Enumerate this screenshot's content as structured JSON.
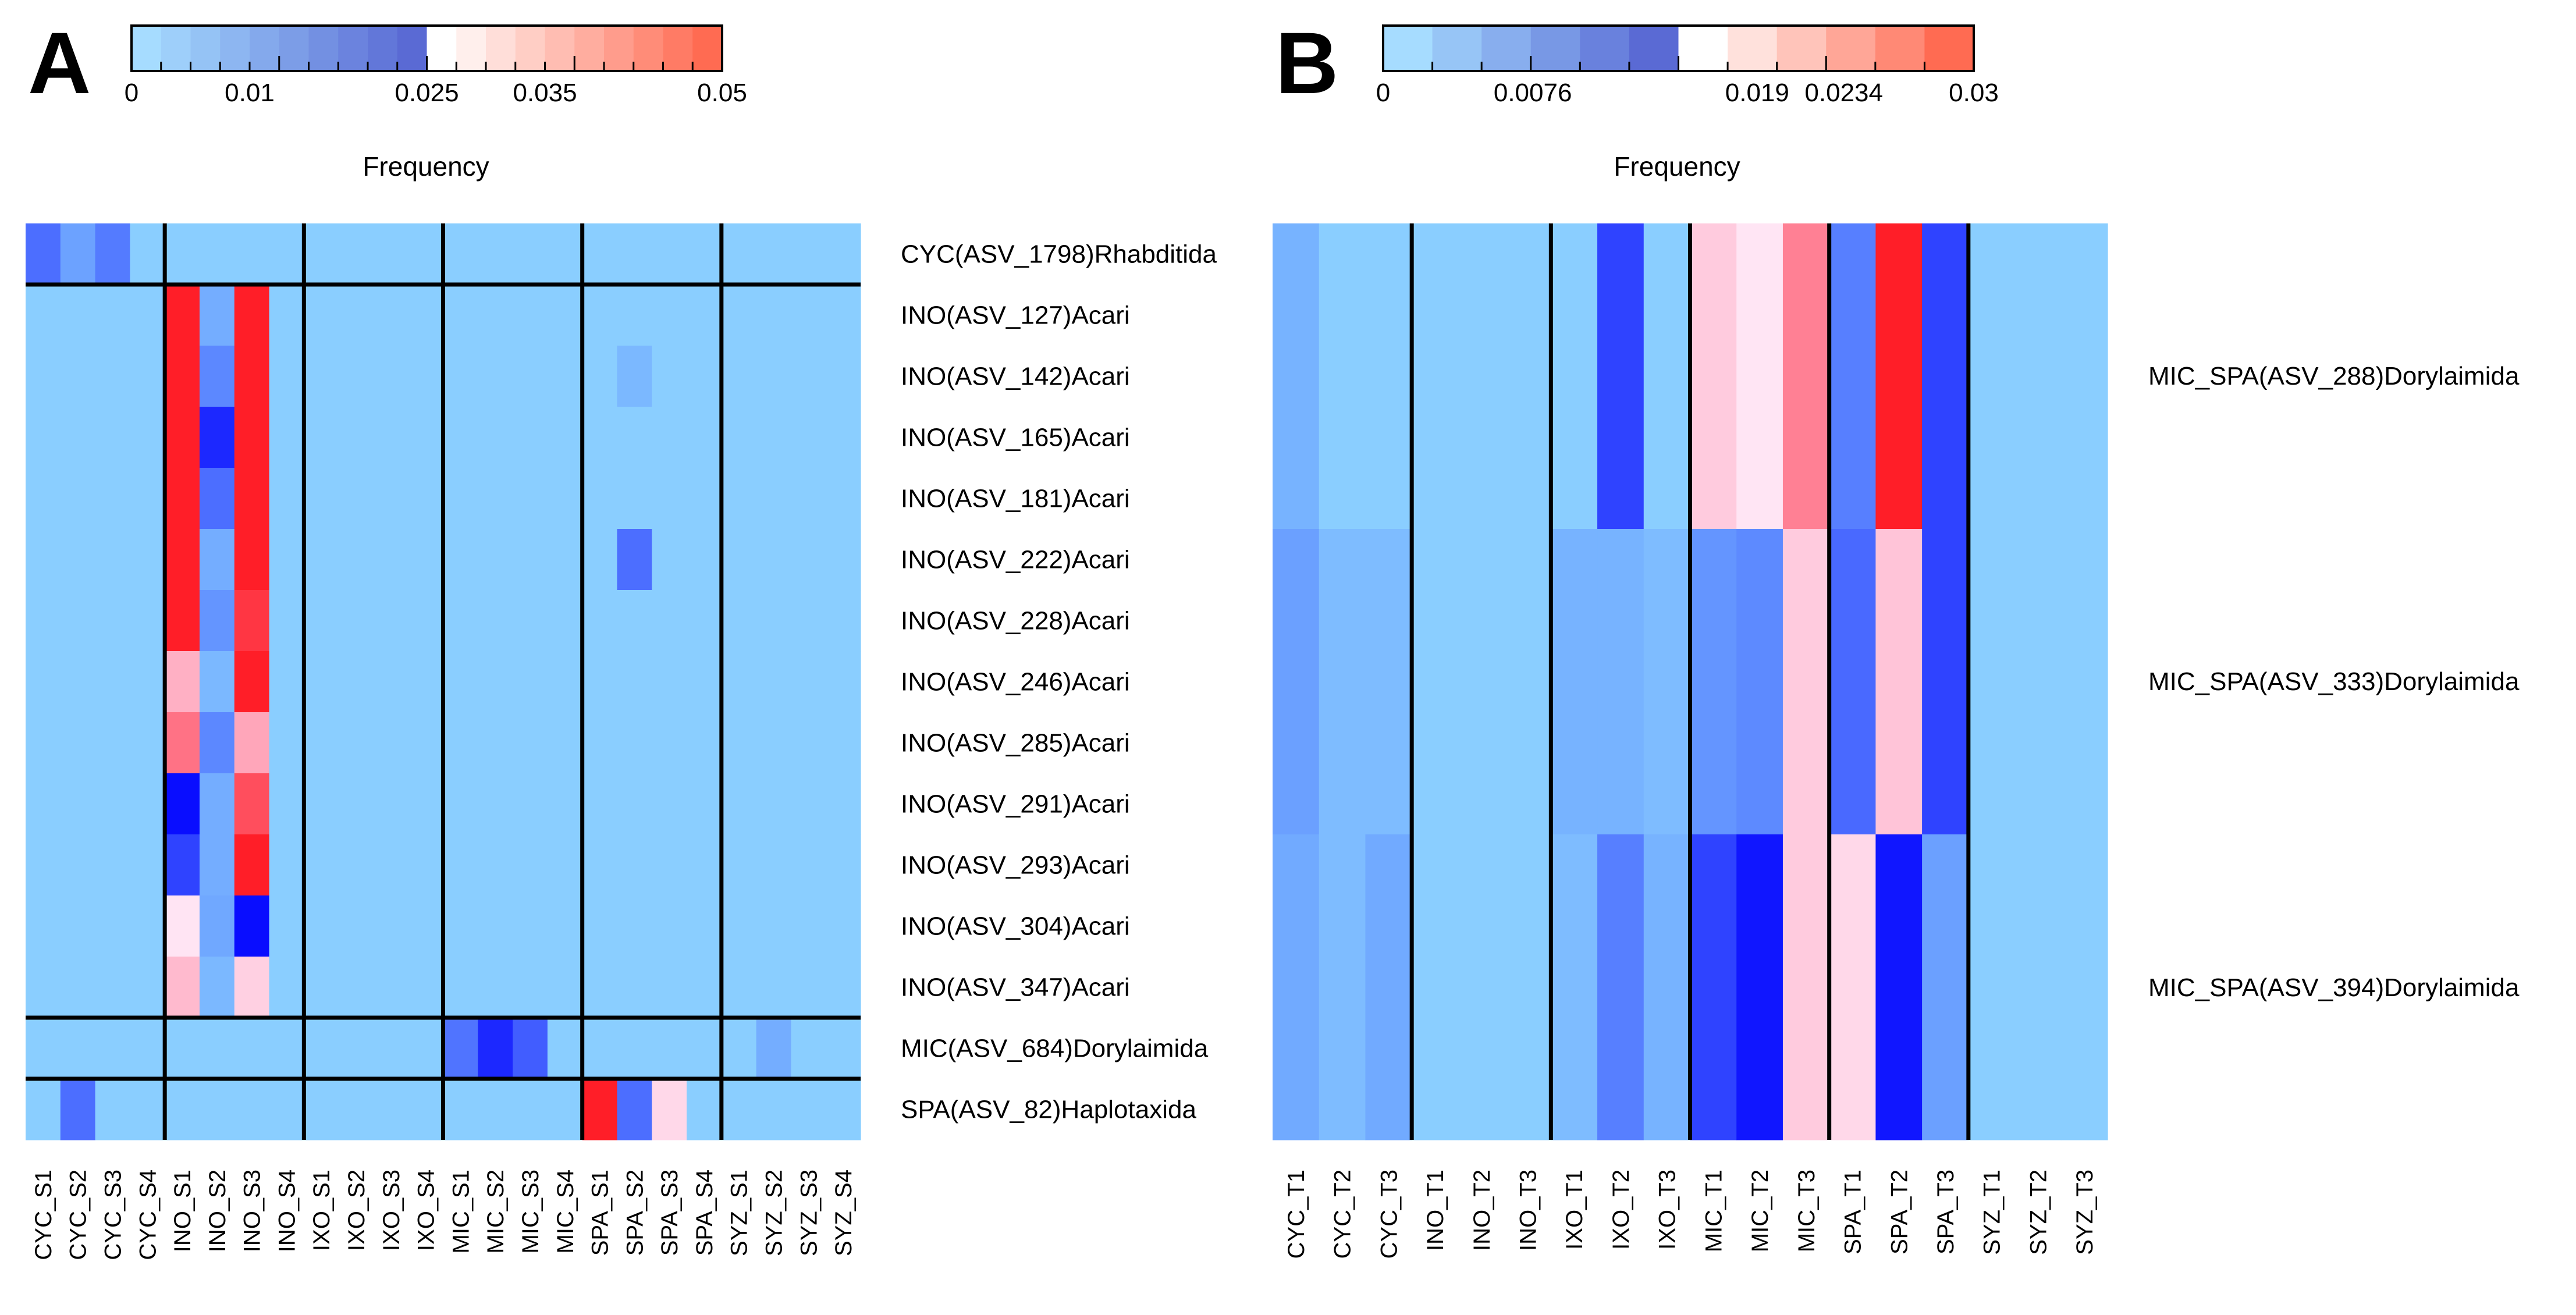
{
  "chart_data": [
    {
      "type": "heatmap",
      "panel_label": "A",
      "colorbar": {
        "title": "Frequency",
        "ticks": [
          "0",
          "0.01",
          "0.025",
          "0.035",
          "0.05"
        ],
        "range": [
          0,
          0.05
        ],
        "steps": 20,
        "low_color": "#a6dcff",
        "mid_low_color": "#5a6ad4",
        "mid_color": "#ffffff",
        "high_color": "#ff6b52"
      },
      "columns": [
        "CYC_S1",
        "CYC_S2",
        "CYC_S3",
        "CYC_S4",
        "INO_S1",
        "INO_S2",
        "INO_S3",
        "INO_S4",
        "IXO_S1",
        "IXO_S2",
        "IXO_S3",
        "IXO_S4",
        "MIC_S1",
        "MIC_S2",
        "MIC_S3",
        "MIC_S4",
        "SPA_S1",
        "SPA_S2",
        "SPA_S3",
        "SPA_S4",
        "SYZ_S1",
        "SYZ_S2",
        "SYZ_S3",
        "SYZ_S4"
      ],
      "rows": [
        "CYC(ASV_1798)Rhabditida",
        "INO(ASV_127)Acari",
        "INO(ASV_142)Acari",
        "INO(ASV_165)Acari",
        "INO(ASV_181)Acari",
        "INO(ASV_222)Acari",
        "INO(ASV_228)Acari",
        "INO(ASV_246)Acari",
        "INO(ASV_285)Acari",
        "INO(ASV_291)Acari",
        "INO(ASV_293)Acari",
        "INO(ASV_304)Acari",
        "INO(ASV_347)Acari",
        "MIC(ASV_684)Dorylaimida",
        "SPA(ASV_82)Haplotaxida"
      ],
      "col_separators_after": [
        3,
        7,
        11,
        15,
        19
      ],
      "row_separators_after": [
        0,
        12,
        13
      ],
      "values": [
        [
          0.016,
          0.008,
          0.014,
          0,
          0,
          0,
          0,
          0,
          0,
          0,
          0,
          0,
          0,
          0,
          0,
          0,
          0,
          0,
          0,
          0,
          0,
          0,
          0,
          0
        ],
        [
          0,
          0,
          0,
          0,
          0.05,
          0.006,
          0.05,
          0,
          0,
          0,
          0,
          0,
          0,
          0,
          0,
          0,
          0,
          0,
          0,
          0,
          0,
          0,
          0,
          0
        ],
        [
          0,
          0,
          0,
          0,
          0.05,
          0.012,
          0.05,
          0,
          0,
          0,
          0,
          0,
          0,
          0,
          0,
          0,
          0,
          0.004,
          0,
          0,
          0,
          0,
          0,
          0
        ],
        [
          0,
          0,
          0,
          0,
          0.05,
          0.022,
          0.05,
          0,
          0,
          0,
          0,
          0,
          0,
          0,
          0,
          0,
          0,
          0,
          0,
          0,
          0,
          0,
          0,
          0
        ],
        [
          0,
          0,
          0,
          0,
          0.05,
          0.016,
          0.05,
          0,
          0,
          0,
          0,
          0,
          0,
          0,
          0,
          0,
          0,
          0,
          0,
          0,
          0,
          0,
          0,
          0
        ],
        [
          0,
          0,
          0,
          0,
          0.05,
          0.006,
          0.05,
          0,
          0,
          0,
          0,
          0,
          0,
          0,
          0,
          0,
          0,
          0.016,
          0,
          0,
          0,
          0,
          0,
          0
        ],
        [
          0,
          0,
          0,
          0,
          0.05,
          0.01,
          0.048,
          0,
          0,
          0,
          0,
          0,
          0,
          0,
          0,
          0,
          0,
          0,
          0,
          0,
          0,
          0,
          0,
          0
        ],
        [
          0,
          0,
          0,
          0,
          0.037,
          0.004,
          0.05,
          0,
          0,
          0,
          0,
          0,
          0,
          0,
          0,
          0,
          0,
          0,
          0,
          0,
          0,
          0,
          0,
          0
        ],
        [
          0,
          0,
          0,
          0,
          0.043,
          0.012,
          0.038,
          0,
          0,
          0,
          0,
          0,
          0,
          0,
          0,
          0,
          0,
          0,
          0,
          0,
          0,
          0,
          0,
          0
        ],
        [
          0,
          0,
          0,
          0,
          0.024,
          0.006,
          0.046,
          0,
          0,
          0,
          0,
          0,
          0,
          0,
          0,
          0,
          0,
          0,
          0,
          0,
          0,
          0,
          0,
          0
        ],
        [
          0,
          0,
          0,
          0,
          0.02,
          0.006,
          0.05,
          0,
          0,
          0,
          0,
          0,
          0,
          0,
          0,
          0,
          0,
          0,
          0,
          0,
          0,
          0,
          0,
          0
        ],
        [
          0,
          0,
          0,
          0,
          0.027,
          0.007,
          0.024,
          0,
          0,
          0,
          0,
          0,
          0,
          0,
          0,
          0,
          0,
          0,
          0,
          0,
          0,
          0,
          0,
          0
        ],
        [
          0,
          0,
          0,
          0,
          0.036,
          0.004,
          0.032,
          0,
          0,
          0,
          0,
          0,
          0,
          0,
          0,
          0,
          0,
          0,
          0,
          0,
          0,
          0,
          0,
          0
        ],
        [
          0,
          0,
          0,
          0,
          0,
          0,
          0,
          0,
          0,
          0,
          0,
          0,
          0.015,
          0.022,
          0.018,
          0,
          0,
          0,
          0,
          0,
          0,
          0.006,
          0,
          0
        ],
        [
          0,
          0.016,
          0,
          0,
          0,
          0,
          0,
          0,
          0,
          0,
          0,
          0,
          0,
          0,
          0,
          0,
          0.05,
          0.016,
          0.03,
          0,
          0,
          0,
          0,
          0
        ]
      ]
    },
    {
      "type": "heatmap",
      "panel_label": "B",
      "colorbar": {
        "title": "Frequency",
        "ticks": [
          "0",
          "0.0076",
          "0.019",
          "0.0234",
          "0.03"
        ],
        "range": [
          0,
          0.03
        ],
        "steps": 12,
        "low_color": "#a6dcff",
        "mid_low_color": "#5a6ad4",
        "mid_color": "#ffffff",
        "high_color": "#ff6b52"
      },
      "columns": [
        "CYC_T1",
        "CYC_T2",
        "CYC_T3",
        "INO_T1",
        "INO_T2",
        "INO_T3",
        "IXO_T1",
        "IXO_T2",
        "IXO_T3",
        "MIC_T1",
        "MIC_T2",
        "MIC_T3",
        "SPA_T1",
        "SPA_T2",
        "SPA_T3",
        "SYZ_T1",
        "SYZ_T2",
        "SYZ_T3"
      ],
      "rows": [
        "MIC_SPA(ASV_288)Dorylaimida",
        "MIC_SPA(ASV_333)Dorylaimida",
        "MIC_SPA(ASV_394)Dorylaimida"
      ],
      "col_separators_after": [
        2,
        5,
        8,
        11,
        14
      ],
      "row_separators_after": [],
      "values": [
        [
          0.003,
          0,
          0,
          0,
          0,
          0,
          0,
          0.012,
          0,
          0.02,
          0.016,
          0.025,
          0.008,
          0.03,
          0.012,
          0,
          0,
          0
        ],
        [
          0.005,
          0.002,
          0.002,
          0,
          0,
          0,
          0.003,
          0.003,
          0.002,
          0.006,
          0.007,
          0.02,
          0.01,
          0.021,
          0.012,
          0,
          0,
          0
        ],
        [
          0.004,
          0.002,
          0.004,
          0,
          0,
          0,
          0.002,
          0.008,
          0.003,
          0.012,
          0.014,
          0.02,
          0.018,
          0.014,
          0.005,
          0,
          0,
          0
        ]
      ]
    }
  ]
}
